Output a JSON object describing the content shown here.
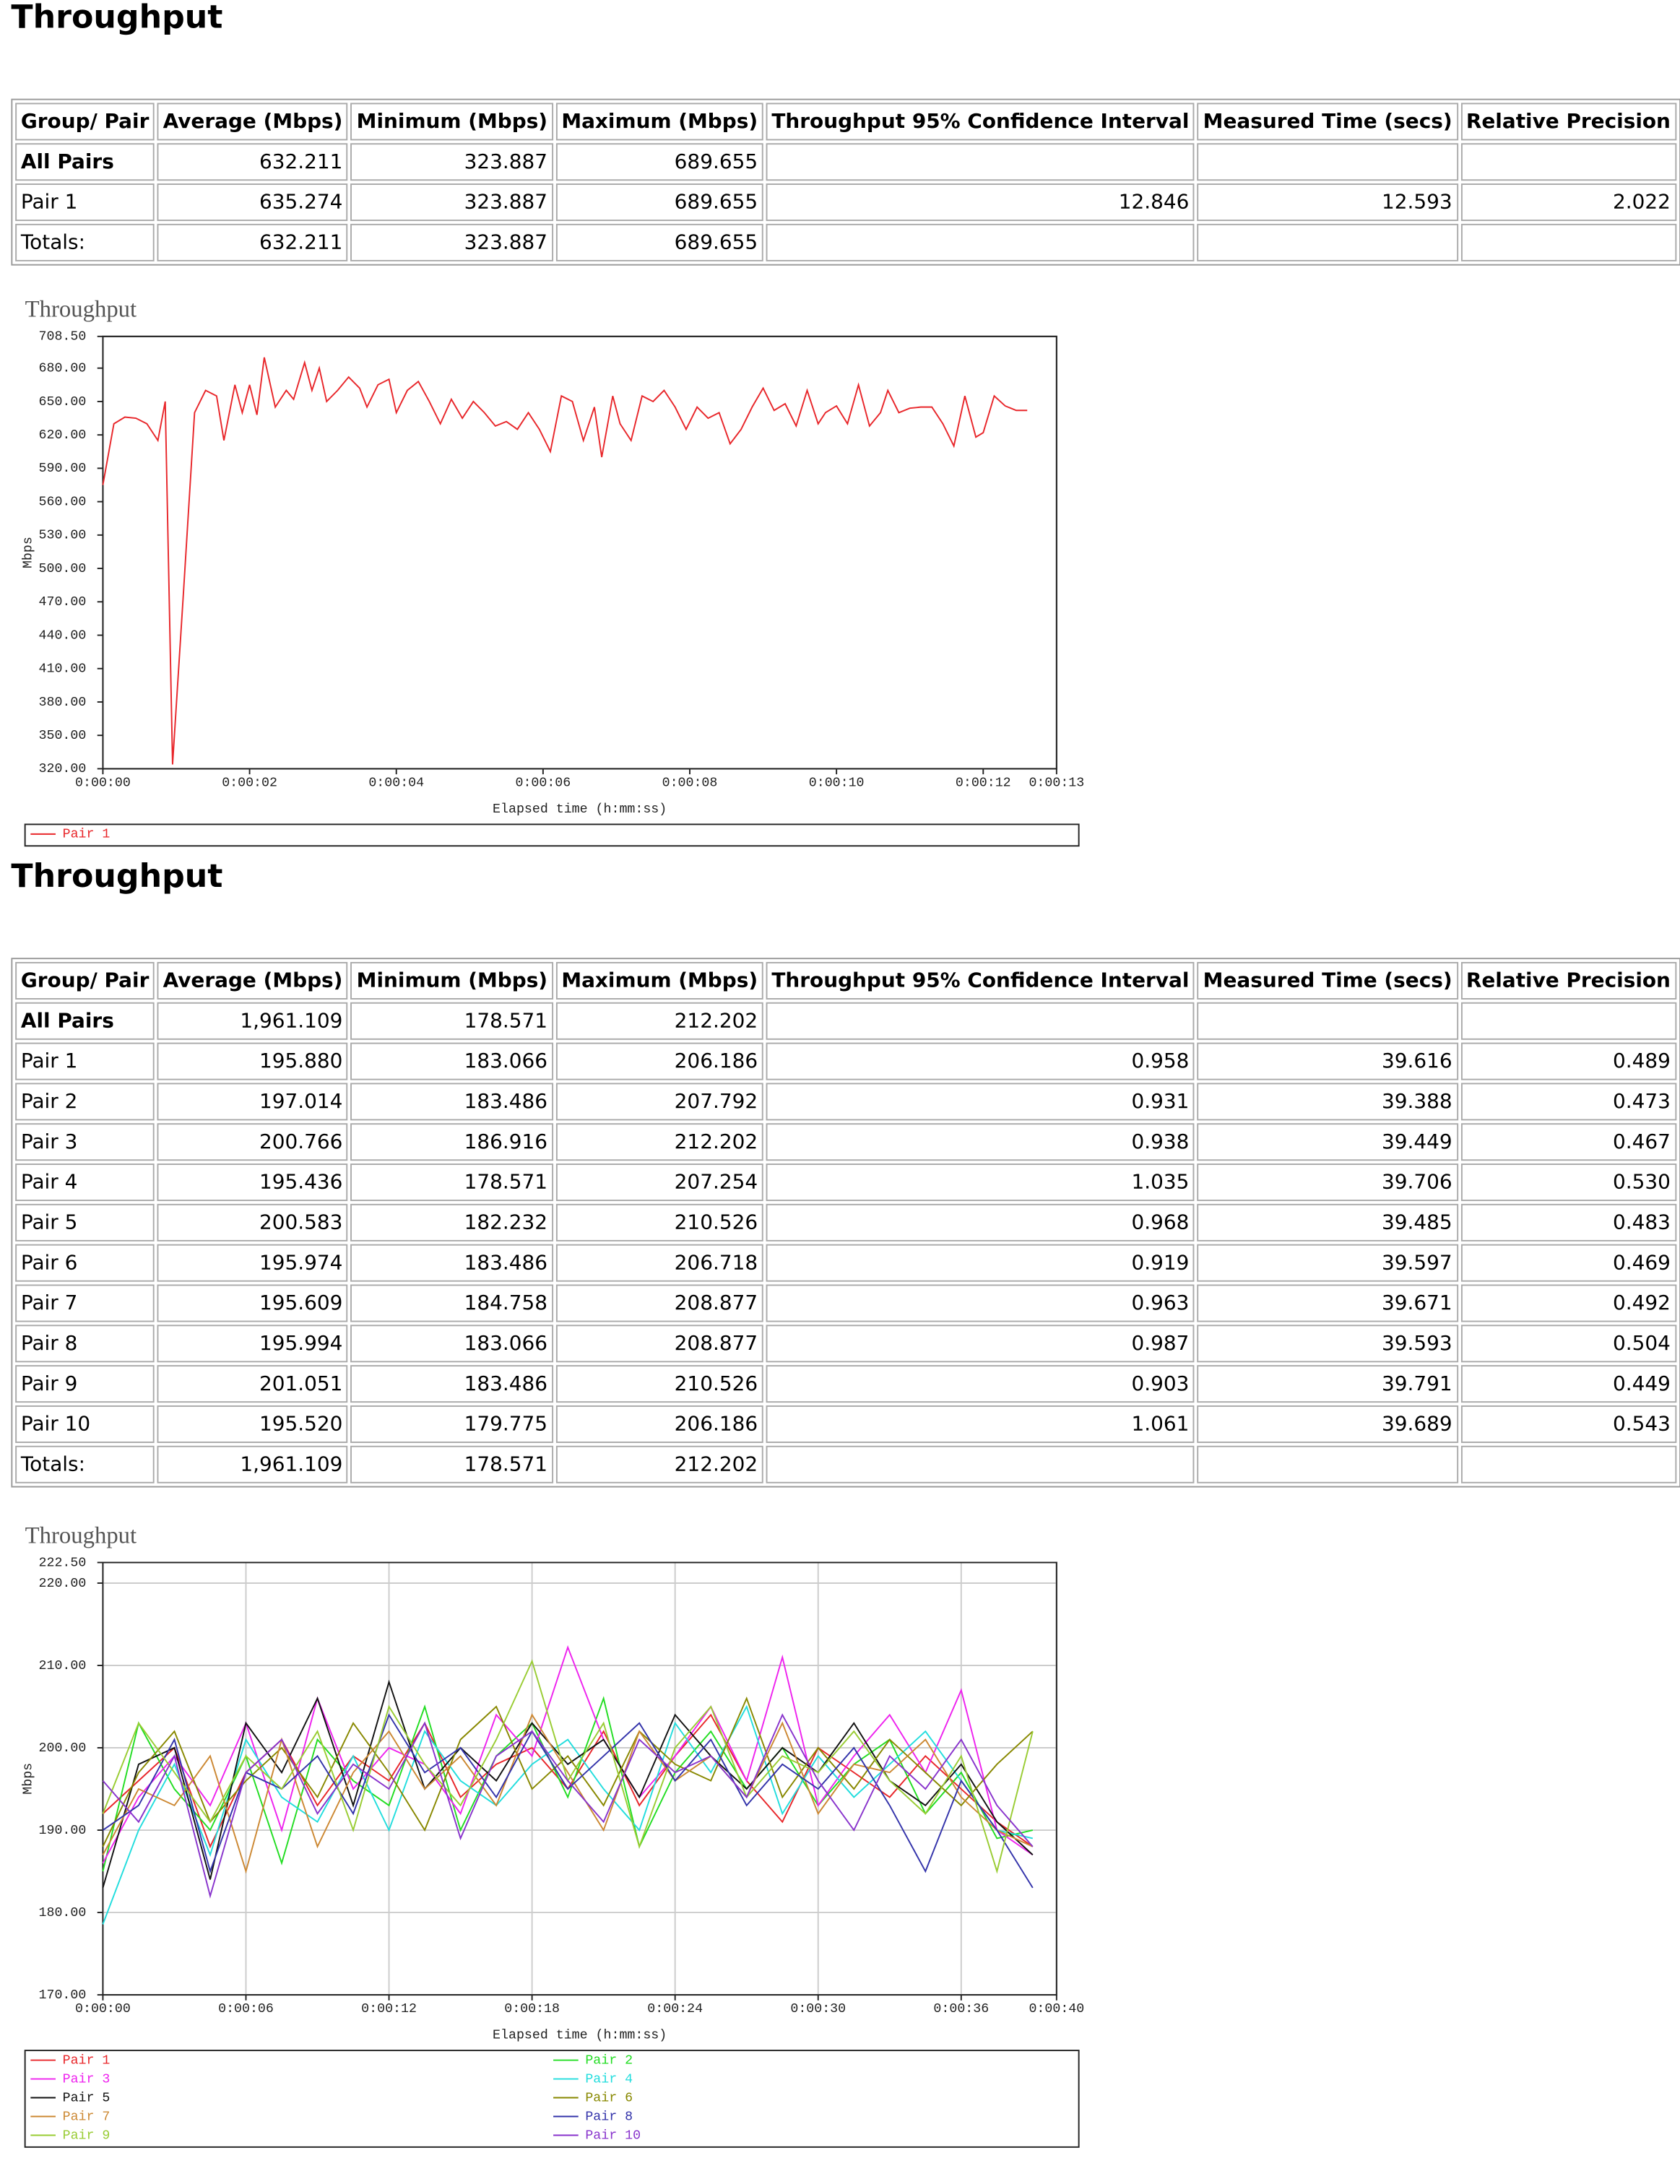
{
  "sections": [
    {
      "title": "Throughput",
      "table": {
        "header": [
          "Group/ Pair",
          "Average (Mbps)",
          "Minimum (Mbps)",
          "Maximum (Mbps)",
          "Throughput 95% Confidence Interval",
          "Measured Time (secs)",
          "Relative Precision"
        ],
        "rows": [
          [
            "All Pairs",
            "632.211",
            "323.887",
            "689.655",
            null,
            null,
            null
          ],
          [
            "Pair 1",
            "635.274",
            "323.887",
            "689.655",
            "12.846",
            "12.593",
            "2.022"
          ],
          [
            "Totals:",
            "632.211",
            "323.887",
            "689.655",
            null,
            null,
            null
          ]
        ]
      }
    },
    {
      "title": "Throughput",
      "table": {
        "header": [
          "Group/ Pair",
          "Average (Mbps)",
          "Minimum (Mbps)",
          "Maximum (Mbps)",
          "Throughput 95% Confidence Interval",
          "Measured Time (secs)",
          "Relative Precision"
        ],
        "rows": [
          [
            "All Pairs",
            "1,961.109",
            "178.571",
            "212.202",
            null,
            null,
            null
          ],
          [
            "Pair 1",
            "195.880",
            "183.066",
            "206.186",
            "0.958",
            "39.616",
            "0.489"
          ],
          [
            "Pair 2",
            "197.014",
            "183.486",
            "207.792",
            "0.931",
            "39.388",
            "0.473"
          ],
          [
            "Pair 3",
            "200.766",
            "186.916",
            "212.202",
            "0.938",
            "39.449",
            "0.467"
          ],
          [
            "Pair 4",
            "195.436",
            "178.571",
            "207.254",
            "1.035",
            "39.706",
            "0.530"
          ],
          [
            "Pair 5",
            "200.583",
            "182.232",
            "210.526",
            "0.968",
            "39.485",
            "0.483"
          ],
          [
            "Pair 6",
            "195.974",
            "183.486",
            "206.718",
            "0.919",
            "39.597",
            "0.469"
          ],
          [
            "Pair 7",
            "195.609",
            "184.758",
            "208.877",
            "0.963",
            "39.671",
            "0.492"
          ],
          [
            "Pair 8",
            "195.994",
            "183.066",
            "208.877",
            "0.987",
            "39.593",
            "0.504"
          ],
          [
            "Pair 9",
            "201.051",
            "183.486",
            "210.526",
            "0.903",
            "39.791",
            "0.449"
          ],
          [
            "Pair 10",
            "195.520",
            "179.775",
            "206.186",
            "1.061",
            "39.689",
            "0.543"
          ],
          [
            "Totals:",
            "1,961.109",
            "178.571",
            "212.202",
            null,
            null,
            null
          ]
        ]
      }
    }
  ],
  "chart_data": [
    {
      "type": "line",
      "title": "Throughput",
      "x_label": "Elapsed time (h:mm:ss)",
      "y_label": "Mbps",
      "grid": false,
      "legend": "bottom",
      "xlim": [
        0,
        13
      ],
      "ylim": [
        320,
        708.5
      ],
      "xticks": [
        {
          "value": 0,
          "label": "0:00:00"
        },
        {
          "value": 2,
          "label": "0:00:02"
        },
        {
          "value": 4,
          "label": "0:00:04"
        },
        {
          "value": 6,
          "label": "0:00:06"
        },
        {
          "value": 8,
          "label": "0:00:08"
        },
        {
          "value": 10,
          "label": "0:00:10"
        },
        {
          "value": 12,
          "label": "0:00:12"
        },
        {
          "value": 13,
          "label": "0:00:13"
        }
      ],
      "yticks": [
        {
          "value": 320,
          "label": "320.00"
        },
        {
          "value": 350,
          "label": "350.00"
        },
        {
          "value": 380,
          "label": "380.00"
        },
        {
          "value": 410,
          "label": "410.00"
        },
        {
          "value": 440,
          "label": "440.00"
        },
        {
          "value": 470,
          "label": "470.00"
        },
        {
          "value": 500,
          "label": "500.00"
        },
        {
          "value": 530,
          "label": "530.00"
        },
        {
          "value": 560,
          "label": "560.00"
        },
        {
          "value": 590,
          "label": "590.00"
        },
        {
          "value": 620,
          "label": "620.00"
        },
        {
          "value": 650,
          "label": "650.00"
        },
        {
          "value": 680,
          "label": "680.00"
        },
        {
          "value": 708.5,
          "label": "708.50"
        }
      ],
      "x": [
        0,
        0.15,
        0.3,
        0.45,
        0.6,
        0.75,
        0.85,
        0.95,
        1.1,
        1.25,
        1.4,
        1.55,
        1.65,
        1.8,
        1.9,
        2.0,
        2.1,
        2.2,
        2.35,
        2.5,
        2.6,
        2.75,
        2.85,
        2.95,
        3.05,
        3.2,
        3.35,
        3.5,
        3.6,
        3.75,
        3.9,
        4.0,
        4.15,
        4.3,
        4.45,
        4.6,
        4.75,
        4.9,
        5.05,
        5.2,
        5.35,
        5.5,
        5.65,
        5.8,
        5.95,
        6.1,
        6.25,
        6.4,
        6.55,
        6.7,
        6.8,
        6.95,
        7.05,
        7.2,
        7.35,
        7.5,
        7.65,
        7.8,
        7.95,
        8.1,
        8.25,
        8.4,
        8.55,
        8.7,
        8.85,
        9.0,
        9.15,
        9.3,
        9.45,
        9.6,
        9.75,
        9.85,
        10.0,
        10.15,
        10.3,
        10.45,
        10.6,
        10.7,
        10.85,
        11.0,
        11.15,
        11.3,
        11.45,
        11.6,
        11.75,
        11.9,
        12.0,
        12.15,
        12.3,
        12.45,
        12.6
      ],
      "series": [
        {
          "name": "Pair 1",
          "color": "#e8262a",
          "values": [
            575,
            630,
            636,
            635,
            630,
            615,
            650,
            323.887,
            480,
            640,
            660,
            655,
            615,
            665,
            640,
            665,
            638,
            689.655,
            645,
            660,
            652,
            685,
            660,
            680,
            650,
            660,
            672,
            662,
            645,
            665,
            670,
            640,
            660,
            668,
            650,
            630,
            652,
            635,
            650,
            640,
            628,
            632,
            625,
            640,
            625,
            605,
            655,
            650,
            615,
            645,
            600,
            655,
            630,
            615,
            655,
            650,
            660,
            645,
            625,
            645,
            635,
            640,
            612,
            625,
            645,
            662,
            642,
            648,
            628,
            660,
            630,
            640,
            646,
            630,
            665,
            628,
            640,
            660,
            640,
            644,
            645,
            645,
            630,
            610,
            655,
            618,
            622,
            655,
            646,
            642,
            642
          ]
        }
      ]
    },
    {
      "type": "line",
      "title": "Throughput",
      "x_label": "Elapsed time (h:mm:ss)",
      "y_label": "Mbps",
      "grid": true,
      "legend": "bottom",
      "xlim": [
        0,
        40
      ],
      "ylim": [
        170,
        222.5
      ],
      "xticks": [
        {
          "value": 0,
          "label": "0:00:00"
        },
        {
          "value": 6,
          "label": "0:00:06"
        },
        {
          "value": 12,
          "label": "0:00:12"
        },
        {
          "value": 18,
          "label": "0:00:18"
        },
        {
          "value": 24,
          "label": "0:00:24"
        },
        {
          "value": 30,
          "label": "0:00:30"
        },
        {
          "value": 36,
          "label": "0:00:36"
        },
        {
          "value": 40,
          "label": "0:00:40"
        }
      ],
      "yticks": [
        {
          "value": 170,
          "label": "170.00"
        },
        {
          "value": 180,
          "label": "180.00"
        },
        {
          "value": 190,
          "label": "190.00"
        },
        {
          "value": 200,
          "label": "200.00"
        },
        {
          "value": 210,
          "label": "210.00"
        },
        {
          "value": 220,
          "label": "220.00"
        },
        {
          "value": 222.5,
          "label": "222.50"
        }
      ],
      "x": [
        0,
        1.5,
        3,
        4.5,
        6,
        7.5,
        9,
        10.5,
        12,
        13.5,
        15,
        16.5,
        18,
        19.5,
        21,
        22.5,
        24,
        25.5,
        27,
        28.5,
        30,
        31.5,
        33,
        34.5,
        36,
        37.5,
        39
      ],
      "series": [
        {
          "name": "Pair 1",
          "color": "#e8262a",
          "values": [
            192,
            196,
            200,
            188,
            197,
            201,
            193,
            199,
            196,
            203,
            194,
            198,
            200,
            195,
            202,
            193,
            199,
            204,
            196,
            191,
            200,
            197,
            194,
            199,
            195,
            191,
            188
          ]
        },
        {
          "name": "Pair 2",
          "color": "#22dd22",
          "values": [
            185,
            203,
            195,
            190,
            199,
            186,
            201,
            196,
            193,
            205,
            190,
            199,
            203,
            194,
            206,
            188,
            197,
            202,
            195,
            200,
            193,
            198,
            201,
            192,
            197,
            189,
            190
          ]
        },
        {
          "name": "Pair 3",
          "color": "#ee22ee",
          "values": [
            186,
            194,
            199,
            193,
            203,
            190,
            206,
            195,
            200,
            198,
            192,
            204,
            199,
            212.202,
            201,
            194,
            199,
            205,
            196,
            211,
            193,
            199,
            204,
            197,
            207,
            190,
            187
          ]
        },
        {
          "name": "Pair 4",
          "color": "#22dddd",
          "values": [
            178.571,
            190,
            198,
            187,
            201,
            194,
            191,
            199,
            190,
            202,
            196,
            193,
            198,
            201,
            195,
            190,
            203,
            197,
            205,
            192,
            199,
            194,
            198,
            202,
            196,
            190,
            189
          ]
        },
        {
          "name": "Pair 5",
          "color": "#111111",
          "values": [
            183,
            198,
            200,
            184,
            203,
            197,
            206,
            193,
            208,
            195,
            200,
            196,
            203,
            198,
            201,
            194,
            204,
            199,
            195,
            200,
            197,
            203,
            196,
            193,
            198,
            191,
            187
          ]
        },
        {
          "name": "Pair 6",
          "color": "#888800",
          "values": [
            188,
            197,
            202,
            191,
            196,
            200,
            194,
            203,
            197,
            190,
            201,
            205,
            195,
            199,
            193,
            202,
            198,
            196,
            206,
            194,
            200,
            195,
            201,
            197,
            193,
            198,
            202
          ]
        },
        {
          "name": "Pair 7",
          "color": "#cc8833",
          "values": [
            187,
            195,
            193,
            199,
            185,
            201,
            188,
            197,
            202,
            195,
            199,
            193,
            204,
            197,
            190,
            202,
            196,
            199,
            194,
            203,
            192,
            198,
            197,
            201,
            194,
            190,
            188
          ]
        },
        {
          "name": "Pair 8",
          "color": "#3333aa",
          "values": [
            190,
            193,
            201,
            185,
            197,
            195,
            199,
            192,
            204,
            197,
            200,
            194,
            202,
            195,
            199,
            203,
            196,
            201,
            193,
            198,
            195,
            200,
            193,
            185,
            196,
            190,
            183
          ]
        },
        {
          "name": "Pair 9",
          "color": "#99cc33",
          "values": [
            192,
            203,
            197,
            191,
            199,
            195,
            202,
            190,
            205,
            198,
            193,
            201,
            210.526,
            196,
            203,
            188,
            200,
            205,
            194,
            199,
            197,
            202,
            196,
            192,
            199,
            185,
            202
          ]
        },
        {
          "name": "Pair 10",
          "color": "#8833cc",
          "values": [
            196,
            191,
            199,
            182,
            197,
            201,
            192,
            198,
            195,
            203,
            189,
            199,
            202,
            196,
            191,
            201,
            197,
            199,
            194,
            204,
            196,
            190,
            199,
            195,
            201,
            193,
            188
          ]
        }
      ]
    }
  ]
}
